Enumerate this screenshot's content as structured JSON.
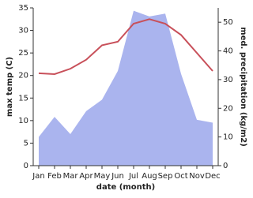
{
  "chart_data": {
    "type": "line_area",
    "x_label": "date (month)",
    "y_label": "max temp (C)",
    "y2_label": "med. precipitation (kg/m2)",
    "categories": [
      "Jan",
      "Feb",
      "Mar",
      "Apr",
      "May",
      "Jun",
      "Jul",
      "Aug",
      "Sep",
      "Oct",
      "Nov",
      "Dec"
    ],
    "ylim": [
      0,
      35
    ],
    "yticks": [
      0,
      5,
      10,
      15,
      20,
      25,
      30,
      35
    ],
    "y2lim": [
      0,
      55
    ],
    "y2ticks": [
      0,
      10,
      20,
      30,
      40,
      50
    ],
    "series": [
      {
        "name": "med. precipitation (kg/m2)",
        "kind": "area",
        "axis": "y2",
        "color": "#aab4ee",
        "values": [
          10,
          17,
          11,
          19,
          23,
          33,
          54,
          52,
          53,
          32,
          16,
          15
        ]
      },
      {
        "name": "max temp (C)",
        "kind": "line",
        "color": "#c8505a",
        "values": [
          20.5,
          20.3,
          21.5,
          23.5,
          26.7,
          27.5,
          31.5,
          32.5,
          31.5,
          29,
          25,
          21
        ]
      }
    ]
  }
}
